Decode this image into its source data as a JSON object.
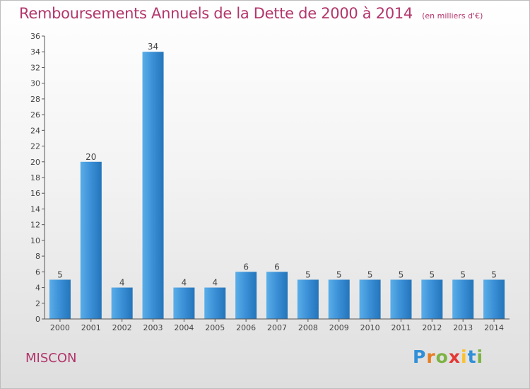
{
  "title": "Remboursements Annuels de la Dette de 2000 à 2014",
  "subtitle": "(en milliers d'€)",
  "commune": "MISCON",
  "logo": {
    "letters": [
      {
        "char": "P",
        "color": "#2f8fd8"
      },
      {
        "char": "r",
        "color": "#e67e22"
      },
      {
        "char": "o",
        "color": "#7cb342"
      },
      {
        "char": "x",
        "color": "#e53935"
      },
      {
        "char": "i",
        "color": "#fbc02d"
      },
      {
        "char": "t",
        "color": "#2f8fd8"
      },
      {
        "char": "i",
        "color": "#7cb342"
      }
    ]
  },
  "chart_data": {
    "type": "bar",
    "categories": [
      "2000",
      "2001",
      "2002",
      "2003",
      "2004",
      "2005",
      "2006",
      "2007",
      "2008",
      "2009",
      "2010",
      "2011",
      "2012",
      "2013",
      "2014"
    ],
    "values": [
      5,
      20,
      4,
      34,
      4,
      4,
      6,
      6,
      5,
      5,
      5,
      5,
      5,
      5,
      5
    ],
    "xlabel": "",
    "ylabel": "",
    "ylim": [
      0,
      36
    ],
    "yticks": [
      0,
      2,
      4,
      6,
      8,
      10,
      12,
      14,
      16,
      18,
      20,
      22,
      24,
      26,
      28,
      30,
      32,
      34,
      36
    ],
    "grid": false,
    "bar_color": "#3a8fd6"
  }
}
